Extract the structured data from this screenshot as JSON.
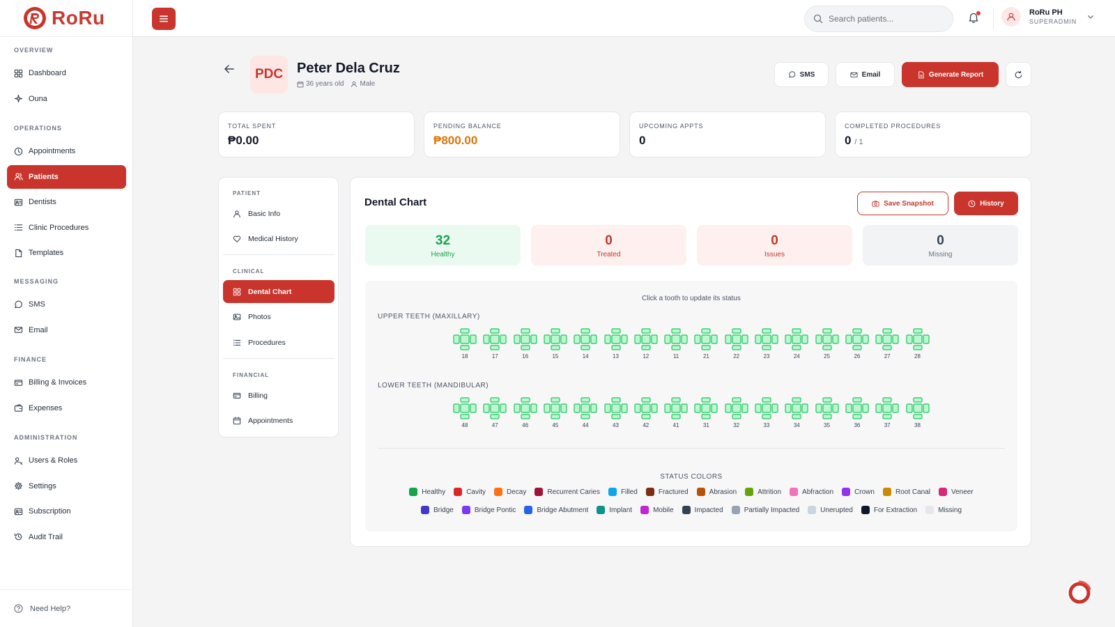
{
  "brand": {
    "name": "RoRu"
  },
  "sidebar": {
    "sections": [
      {
        "title": "OVERVIEW",
        "items": [
          {
            "label": "Dashboard",
            "icon": "grid-icon"
          },
          {
            "label": "Ouna",
            "icon": "sparkle-icon"
          }
        ]
      },
      {
        "title": "OPERATIONS",
        "items": [
          {
            "label": "Appointments",
            "icon": "clock-icon"
          },
          {
            "label": "Patients",
            "icon": "users-icon",
            "active": true
          },
          {
            "label": "Dentists",
            "icon": "id-card-icon"
          },
          {
            "label": "Clinic Procedures",
            "icon": "list-icon"
          },
          {
            "label": "Templates",
            "icon": "file-icon"
          }
        ]
      },
      {
        "title": "MESSAGING",
        "items": [
          {
            "label": "SMS",
            "icon": "chat-icon"
          },
          {
            "label": "Email",
            "icon": "mail-icon"
          }
        ]
      },
      {
        "title": "FINANCE",
        "items": [
          {
            "label": "Billing & Invoices",
            "icon": "card-icon"
          },
          {
            "label": "Expenses",
            "icon": "wallet-icon"
          }
        ]
      },
      {
        "title": "ADMINISTRATION",
        "items": [
          {
            "label": "Users & Roles",
            "icon": "user-key-icon"
          },
          {
            "label": "Settings",
            "icon": "gear-icon"
          },
          {
            "label": "Subscription",
            "icon": "id-card-icon"
          },
          {
            "label": "Audit Trail",
            "icon": "history-icon"
          }
        ]
      }
    ],
    "help_label": "Need Help?"
  },
  "topbar": {
    "search_placeholder": "Search patients...",
    "user_name": "RoRu PH",
    "user_role": "SUPERADMIN"
  },
  "patient": {
    "initials": "PDC",
    "name": "Peter Dela Cruz",
    "age": "36 years old",
    "sex": "Male"
  },
  "actions": {
    "sms": "SMS",
    "email": "Email",
    "report": "Generate Report"
  },
  "stats": [
    {
      "label": "TOTAL SPENT",
      "value": "₱0.00",
      "tone": "default"
    },
    {
      "label": "PENDING BALANCE",
      "value": "₱800.00",
      "tone": "orange"
    },
    {
      "label": "UPCOMING APPTS",
      "value": "0",
      "tone": "default"
    },
    {
      "label": "COMPLETED PROCEDURES",
      "value": "0",
      "sub": "/ 1",
      "tone": "default"
    }
  ],
  "patient_menu": {
    "sections": [
      {
        "title": "PATIENT",
        "items": [
          {
            "label": "Basic Info",
            "icon": "user-icon"
          },
          {
            "label": "Medical History",
            "icon": "heart-icon"
          }
        ]
      },
      {
        "title": "CLINICAL",
        "items": [
          {
            "label": "Dental Chart",
            "icon": "grid-icon",
            "active": true
          },
          {
            "label": "Photos",
            "icon": "image-icon"
          },
          {
            "label": "Procedures",
            "icon": "list-icon"
          }
        ]
      },
      {
        "title": "FINANCIAL",
        "items": [
          {
            "label": "Billing",
            "icon": "card-icon"
          },
          {
            "label": "Appointments",
            "icon": "calendar-icon"
          }
        ]
      }
    ]
  },
  "dental_chart": {
    "title": "Dental Chart",
    "save_label": "Save Snapshot",
    "history_label": "History",
    "summary": [
      {
        "num": "32",
        "label": "Healthy",
        "tone": "green"
      },
      {
        "num": "0",
        "label": "Treated",
        "tone": "pink"
      },
      {
        "num": "0",
        "label": "Issues",
        "tone": "pink"
      },
      {
        "num": "0",
        "label": "Missing",
        "tone": "gray"
      }
    ],
    "hint": "Click a tooth to update its status",
    "upper_label": "UPPER TEETH (MAXILLARY)",
    "lower_label": "LOWER TEETH (MANDIBULAR)",
    "upper_teeth": [
      "18",
      "17",
      "16",
      "15",
      "14",
      "13",
      "12",
      "11",
      "21",
      "22",
      "23",
      "24",
      "25",
      "26",
      "27",
      "28"
    ],
    "lower_teeth": [
      "48",
      "47",
      "46",
      "45",
      "44",
      "43",
      "42",
      "41",
      "31",
      "32",
      "33",
      "34",
      "35",
      "36",
      "37",
      "38"
    ],
    "healthy_color": "#22c55e",
    "legend_title": "STATUS COLORS",
    "legend_row1": [
      {
        "label": "Healthy",
        "color": "#16a34a"
      },
      {
        "label": "Cavity",
        "color": "#dc2626"
      },
      {
        "label": "Decay",
        "color": "#f97316"
      },
      {
        "label": "Recurrent Caries",
        "color": "#9f1239"
      },
      {
        "label": "Filled",
        "color": "#0ea5e9"
      },
      {
        "label": "Fractured",
        "color": "#7c2d12"
      },
      {
        "label": "Abrasion",
        "color": "#b45309"
      },
      {
        "label": "Attrition",
        "color": "#65a30d"
      },
      {
        "label": "Abfraction",
        "color": "#f472b6"
      },
      {
        "label": "Crown",
        "color": "#9333ea"
      },
      {
        "label": "Root Canal",
        "color": "#ca8a04"
      },
      {
        "label": "Veneer",
        "color": "#db2777"
      }
    ],
    "legend_row2": [
      {
        "label": "Bridge",
        "color": "#4338ca"
      },
      {
        "label": "Bridge Pontic",
        "color": "#7c3aed"
      },
      {
        "label": "Bridge Abutment",
        "color": "#2563eb"
      },
      {
        "label": "Implant",
        "color": "#0d9488"
      },
      {
        "label": "Mobile",
        "color": "#c026d3"
      },
      {
        "label": "Impacted",
        "color": "#334155"
      },
      {
        "label": "Partially Impacted",
        "color": "#94a3b8"
      },
      {
        "label": "Unerupted",
        "color": "#cbd5e1"
      },
      {
        "label": "For Extraction",
        "color": "#0f172a"
      },
      {
        "label": "Missing",
        "color": "#e5e7eb"
      }
    ]
  }
}
